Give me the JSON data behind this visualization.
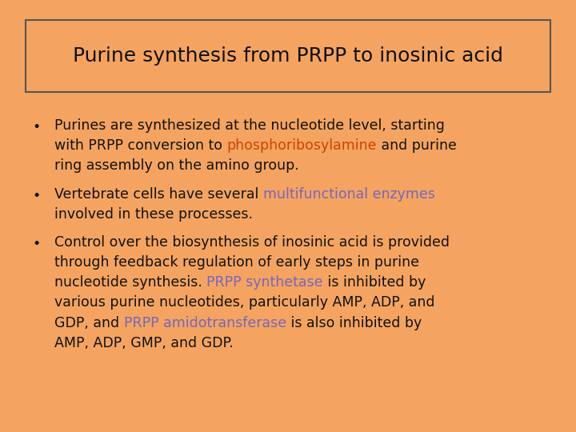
{
  "background_color": "#F4A460",
  "title": "Purine synthesis from PRPP to inosinic acid",
  "title_fontsize": 18,
  "title_color": "#111111",
  "title_box_edge": "#555555",
  "text_color": "#111111",
  "body_fontsize": 12.5,
  "orange": "#cc4400",
  "purple": "#7766bb",
  "bullet_symbol": "•",
  "bullet1": [
    {
      "text": "Purines are synthesized at the nucleotide level, starting\nwith PRPP conversion to ",
      "color": "#111111"
    },
    {
      "text": "phosphoribosylamine",
      "color": "#cc4400"
    },
    {
      "text": " and purine\nring assembly on the amino group.",
      "color": "#111111"
    }
  ],
  "bullet2": [
    {
      "text": "Vertebrate cells have several ",
      "color": "#111111"
    },
    {
      "text": "multifunctional enzymes",
      "color": "#7766bb"
    },
    {
      "text": "\ninvolved in these processes.",
      "color": "#111111"
    }
  ],
  "bullet3": [
    {
      "text": "Control over the biosynthesis of inosinic acid is provided\nthrough feedback regulation of early steps in purine\nnucleotide synthesis. ",
      "color": "#111111"
    },
    {
      "text": "PRPP synthetase",
      "color": "#7766bb"
    },
    {
      "text": " is inhibited by\nvarious purine nucleotides, particularly AMP, ADP, and\nGDP, and ",
      "color": "#111111"
    },
    {
      "text": "PRPP amidotransferase",
      "color": "#7766bb"
    },
    {
      "text": " is also inhibited by\nAMP, ADP, GMP, and GDP.",
      "color": "#111111"
    }
  ]
}
